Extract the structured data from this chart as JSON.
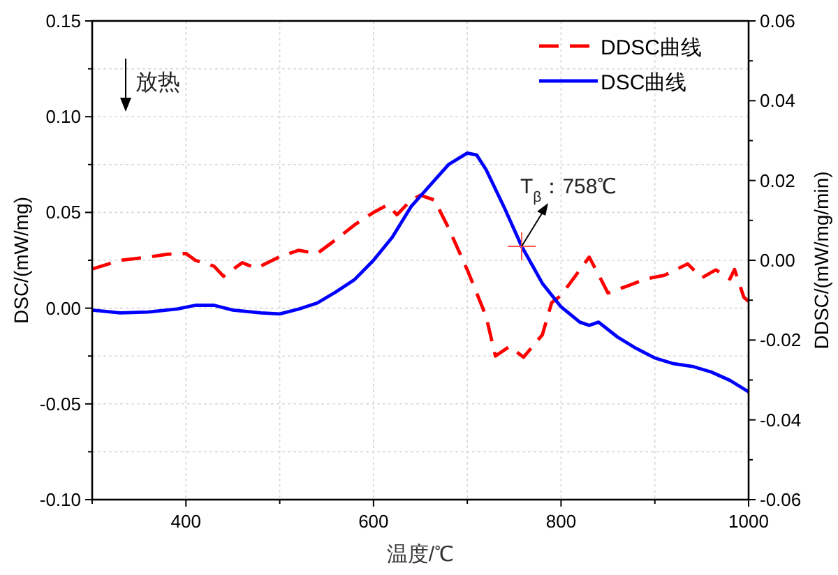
{
  "chart_data": {
    "type": "line",
    "xlabel": "温度/℃",
    "ylabel": "DSC/(mW/mg)",
    "y2label": "DDSC/(mW/mg/min)",
    "x": [
      300,
      330,
      360,
      390,
      410,
      430,
      450,
      480,
      500,
      520,
      540,
      560,
      580,
      600,
      620,
      640,
      660,
      680,
      700,
      710,
      720,
      740,
      758,
      780,
      800,
      820,
      830,
      840,
      860,
      880,
      900,
      920,
      940,
      960,
      980,
      1000
    ],
    "series": [
      {
        "name": "DDSC曲线",
        "color": "#ff0000",
        "axis": "y2",
        "line_style": "dashed",
        "x": [
          300,
          330,
          360,
          380,
          400,
          410,
          430,
          440,
          460,
          475,
          500,
          520,
          540,
          560,
          580,
          600,
          615,
          625,
          640,
          650,
          665,
          680,
          700,
          720,
          730,
          745,
          760,
          780,
          790,
          800,
          820,
          830,
          840,
          850,
          870,
          890,
          910,
          935,
          950,
          965,
          980,
          985,
          995,
          1000
        ],
        "values": [
          -0.0022,
          0.0,
          0.0008,
          0.0015,
          0.0017,
          0.0,
          -0.0015,
          -0.004,
          -0.0006,
          -0.002,
          0.0009,
          0.0025,
          0.0017,
          0.0052,
          0.0089,
          0.012,
          0.0139,
          0.0114,
          0.0151,
          0.0163,
          0.0151,
          0.0081,
          -0.0024,
          -0.014,
          -0.024,
          -0.0216,
          -0.0243,
          -0.0187,
          -0.0106,
          -0.0088,
          -0.0024,
          0.0008,
          -0.0036,
          -0.0082,
          -0.0065,
          -0.0047,
          -0.0038,
          -0.0009,
          -0.0044,
          -0.0024,
          -0.0047,
          -0.0023,
          -0.0093,
          -0.0103
        ]
      },
      {
        "name": "DSC曲线",
        "color": "#0000ff",
        "line_style": "solid",
        "values": [
          -0.001,
          -0.0025,
          -0.002,
          -0.0005,
          0.0015,
          0.0015,
          -0.001,
          -0.0025,
          -0.003,
          -0.0005,
          0.0027,
          0.0085,
          0.015,
          0.025,
          0.037,
          0.053,
          0.064,
          0.075,
          0.081,
          0.08,
          0.0724,
          0.052,
          0.0323,
          0.013,
          0.0007,
          -0.0073,
          -0.009,
          -0.0073,
          -0.015,
          -0.021,
          -0.026,
          -0.029,
          -0.0304,
          -0.0333,
          -0.0377,
          -0.0437
        ]
      }
    ],
    "xlim": [
      300,
      1000
    ],
    "xticks": [
      {
        "value": 300,
        "label": null
      },
      400,
      {
        "value": 500,
        "label": null
      },
      600,
      {
        "value": 700,
        "label": null
      },
      800,
      {
        "value": 900,
        "label": null
      },
      1000
    ],
    "ylim": [
      -0.1,
      0.15
    ],
    "yticks": [
      {
        "value": -0.1,
        "label": "-0.10"
      },
      {
        "value": -0.075,
        "label": null
      },
      {
        "value": -0.05,
        "label": "-0.05"
      },
      {
        "value": -0.025,
        "label": null
      },
      {
        "value": 0,
        "label": "0.00"
      },
      {
        "value": 0.025,
        "label": null
      },
      {
        "value": 0.05,
        "label": "0.05"
      },
      {
        "value": 0.075,
        "label": null
      },
      {
        "value": 0.1,
        "label": "0.10"
      },
      {
        "value": 0.125,
        "label": null
      },
      {
        "value": 0.15,
        "label": "0.15"
      }
    ],
    "y2lim": [
      -0.06,
      0.06
    ],
    "y2ticks": [
      {
        "value": -0.06,
        "label": "-0.06"
      },
      {
        "value": -0.05,
        "label": null
      },
      {
        "value": -0.04,
        "label": "-0.04"
      },
      {
        "value": -0.03,
        "label": null
      },
      {
        "value": -0.02,
        "label": "-0.02"
      },
      {
        "value": -0.01,
        "label": null
      },
      {
        "value": 0,
        "label": "0.00"
      },
      {
        "value": 0.01,
        "label": null
      },
      {
        "value": 0.02,
        "label": "0.02"
      },
      {
        "value": 0.03,
        "label": null
      },
      {
        "value": 0.04,
        "label": "0.04"
      },
      {
        "value": 0.05,
        "label": null
      },
      {
        "value": 0.06,
        "label": "0.06"
      }
    ],
    "annotations": [
      "放热",
      {
        "text": "T$_{β}$：758℃",
        "x": 758,
        "y": 0.0323
      }
    ],
    "grid": true,
    "legend": "top right"
  }
}
